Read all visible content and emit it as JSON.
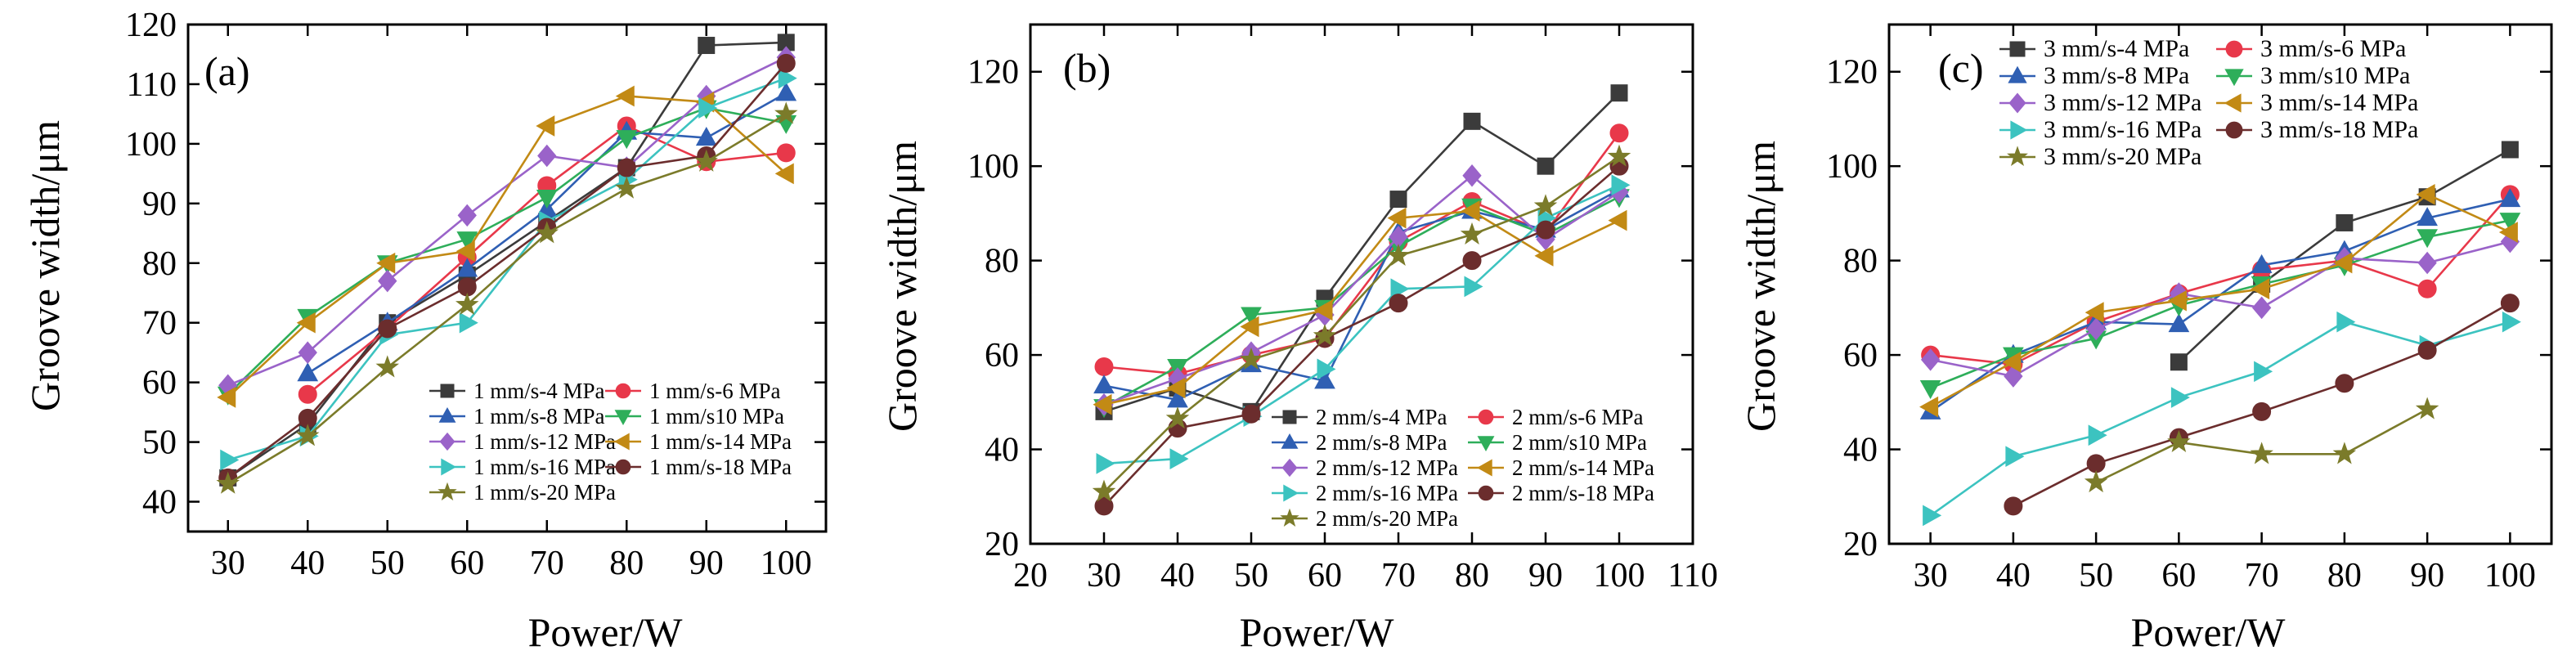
{
  "colors": {
    "s4": "#3b3b3b",
    "s6": "#e8384a",
    "s8": "#2f5fb3",
    "s10": "#2eae5a",
    "s12": "#9a63c9",
    "s14": "#c28a15",
    "s16": "#3cc3c0",
    "s18": "#6b2d2d",
    "s20": "#7b7b2a"
  },
  "chart_data": [
    {
      "type": "line",
      "panel_label": "(a)",
      "xlabel": "Power/W",
      "ylabel": "Groove width/μm",
      "xlim": [
        25,
        105
      ],
      "ylim": [
        35,
        120
      ],
      "xticks": [
        30,
        40,
        50,
        60,
        70,
        80,
        90,
        100
      ],
      "yticks": [
        40,
        50,
        60,
        70,
        80,
        90,
        100,
        110,
        120
      ],
      "x": [
        30,
        40,
        50,
        60,
        70,
        80,
        90,
        100
      ],
      "legend_position": "center-right",
      "series": [
        {
          "name": "1 mm/s-4 MPa",
          "color_key": "s4",
          "marker": "square",
          "values": [
            44,
            53,
            70,
            78,
            87,
            96,
            116.5,
            117
          ]
        },
        {
          "name": "1 mm/s-6 MPa",
          "color_key": "s6",
          "marker": "circle",
          "values": [
            null,
            58,
            69,
            81,
            93,
            103,
            97,
            98.5
          ]
        },
        {
          "name": "1 mm/s-8 MPa",
          "color_key": "s8",
          "marker": "triangle-up",
          "values": [
            null,
            61.5,
            70,
            79,
            89,
            102,
            101,
            108.5
          ]
        },
        {
          "name": "1 mm/s10 MPa",
          "color_key": "s10",
          "marker": "triangle-down",
          "values": [
            58,
            71,
            80,
            84,
            91,
            101,
            106,
            103.5
          ]
        },
        {
          "name": "1 mm/s-12 MPa",
          "color_key": "s12",
          "marker": "diamond",
          "values": [
            59.5,
            65,
            77,
            88,
            98,
            96,
            108,
            114.5
          ]
        },
        {
          "name": "1 mm/s-14 MPa",
          "color_key": "s14",
          "marker": "triangle-left",
          "values": [
            57.5,
            70,
            80,
            82,
            103,
            108,
            107,
            95
          ]
        },
        {
          "name": "1 mm/s-16 MPa",
          "color_key": "s16",
          "marker": "triangle-right",
          "values": [
            47,
            51,
            68,
            70,
            87,
            94,
            106,
            111
          ]
        },
        {
          "name": "1 mm/s-18 MPa",
          "color_key": "s18",
          "marker": "circle",
          "values": [
            44,
            54,
            69,
            76,
            86,
            96,
            98,
            113.5
          ]
        },
        {
          "name": "1 mm/s-20 MPa",
          "color_key": "s20",
          "marker": "star",
          "values": [
            43,
            51,
            62.5,
            73,
            85,
            92.5,
            97,
            105
          ]
        }
      ]
    },
    {
      "type": "line",
      "panel_label": "(b)",
      "xlabel": "Power/W",
      "ylabel": "Groove width/μm",
      "xlim": [
        20,
        110
      ],
      "ylim": [
        20,
        130
      ],
      "xticks": [
        20,
        30,
        40,
        50,
        60,
        70,
        80,
        90,
        100,
        110
      ],
      "yticks": [
        20,
        40,
        60,
        80,
        100,
        120
      ],
      "x": [
        30,
        40,
        50,
        60,
        70,
        80,
        90,
        100
      ],
      "legend_position": "lower-right",
      "series": [
        {
          "name": "2 mm/s-4 MPa",
          "color_key": "s4",
          "marker": "square",
          "values": [
            48,
            53,
            48,
            72,
            93,
            109.5,
            100,
            115.5
          ]
        },
        {
          "name": "2 mm/s-6 MPa",
          "color_key": "s6",
          "marker": "circle",
          "values": [
            57.5,
            56,
            60,
            63.5,
            84,
            92.5,
            86,
            107
          ]
        },
        {
          "name": "2 mm/s-8 MPa",
          "color_key": "s8",
          "marker": "triangle-up",
          "values": [
            53.5,
            50.5,
            58,
            54.5,
            86,
            90.5,
            86.5,
            95
          ]
        },
        {
          "name": "2 mm/s10 MPa",
          "color_key": "s10",
          "marker": "triangle-down",
          "values": [
            49,
            57.5,
            68.5,
            70,
            83,
            91.5,
            85.5,
            93.5
          ]
        },
        {
          "name": "2 mm/s-12 MPa",
          "color_key": "s12",
          "marker": "diamond",
          "values": [
            49.5,
            55,
            60.5,
            68.5,
            85,
            98,
            84.5,
            94.5
          ]
        },
        {
          "name": "2 mm/s-14 MPa",
          "color_key": "s14",
          "marker": "triangle-left",
          "values": [
            49.5,
            53,
            66,
            69.5,
            89,
            90.5,
            81,
            88.5
          ]
        },
        {
          "name": "2 mm/s-16 MPa",
          "color_key": "s16",
          "marker": "triangle-right",
          "values": [
            37,
            38,
            47,
            57,
            74,
            74.5,
            89,
            96
          ]
        },
        {
          "name": "2 mm/s-18 MPa",
          "color_key": "s18",
          "marker": "circle",
          "values": [
            28,
            44.5,
            47.5,
            63.5,
            71,
            80,
            86.5,
            100
          ]
        },
        {
          "name": "2 mm/s-20 MPa",
          "color_key": "s20",
          "marker": "star",
          "values": [
            31,
            46.5,
            59,
            64,
            81,
            85.5,
            91.5,
            102
          ]
        }
      ]
    },
    {
      "type": "line",
      "panel_label": "(c)",
      "xlabel": "Power/W",
      "ylabel": "Groove width/μm",
      "xlim": [
        25,
        105
      ],
      "ylim": [
        20,
        130
      ],
      "xticks": [
        30,
        40,
        50,
        60,
        70,
        80,
        90,
        100
      ],
      "yticks": [
        20,
        40,
        60,
        80,
        100,
        120
      ],
      "x": [
        30,
        40,
        50,
        60,
        70,
        80,
        90,
        100
      ],
      "legend_position": "upper-left",
      "series": [
        {
          "name": "3 mm/s-4 MPa",
          "color_key": "s4",
          "marker": "square",
          "values": [
            null,
            null,
            null,
            58.5,
            75,
            88,
            93.5,
            103.5
          ]
        },
        {
          "name": "3 mm/s-6 MPa",
          "color_key": "s6",
          "marker": "circle",
          "values": [
            60,
            58,
            67,
            73,
            78,
            80,
            74,
            94
          ]
        },
        {
          "name": "3 mm/s-8 MPa",
          "color_key": "s8",
          "marker": "triangle-up",
          "values": [
            48,
            60,
            67,
            66.5,
            79,
            82,
            89,
            93
          ]
        },
        {
          "name": "3 mm/s10 MPa",
          "color_key": "s10",
          "marker": "triangle-down",
          "values": [
            53,
            60,
            63.5,
            70.5,
            75,
            79,
            85,
            88.5
          ]
        },
        {
          "name": "3 mm/s-12 MPa",
          "color_key": "s12",
          "marker": "diamond",
          "values": [
            59,
            55.5,
            65.5,
            73,
            70,
            80.5,
            79.5,
            84
          ]
        },
        {
          "name": "3 mm/s-14 MPa",
          "color_key": "s14",
          "marker": "triangle-left",
          "values": [
            49,
            58.5,
            69,
            71.5,
            74,
            79.5,
            94,
            86
          ]
        },
        {
          "name": "3 mm/s-16 MPa",
          "color_key": "s16",
          "marker": "triangle-right",
          "values": [
            26,
            38.5,
            43,
            51,
            56.5,
            67,
            62,
            67
          ]
        },
        {
          "name": "3 mm/s-18 MPa",
          "color_key": "s18",
          "marker": "circle",
          "values": [
            null,
            28,
            37,
            42.5,
            48,
            54,
            61,
            71
          ]
        },
        {
          "name": "3 mm/s-20 MPa",
          "color_key": "s20",
          "marker": "star",
          "values": [
            null,
            null,
            33,
            41.5,
            39,
            39,
            48.5,
            null
          ]
        }
      ]
    }
  ]
}
